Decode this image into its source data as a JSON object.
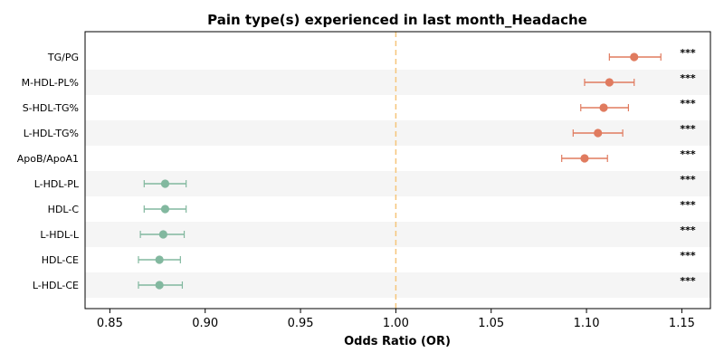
{
  "chart_data": {
    "type": "forest",
    "title": "Pain type(s) experienced in last month_Headache",
    "xlabel": "Odds Ratio (OR)",
    "xlim": [
      0.837,
      1.165
    ],
    "xticks": [
      "0.85",
      "0.90",
      "0.95",
      "1.00",
      "1.05",
      "1.10",
      "1.15"
    ],
    "xtick_values": [
      0.85,
      0.9,
      0.95,
      1.0,
      1.05,
      1.1,
      1.15
    ],
    "reference_line": 1.0,
    "reference_color": "#f5c57a",
    "band_color": "#f5f5f5",
    "colors": {
      "positive": "#e07b5f",
      "negative": "#82b89f"
    },
    "rows": [
      {
        "label": "TG/PG",
        "or": 1.125,
        "low": 1.112,
        "high": 1.139,
        "sig": "***",
        "direction": "positive"
      },
      {
        "label": "M-HDL-PL%",
        "or": 1.112,
        "low": 1.099,
        "high": 1.125,
        "sig": "***",
        "direction": "positive"
      },
      {
        "label": "S-HDL-TG%",
        "or": 1.109,
        "low": 1.097,
        "high": 1.122,
        "sig": "***",
        "direction": "positive"
      },
      {
        "label": "L-HDL-TG%",
        "or": 1.106,
        "low": 1.093,
        "high": 1.119,
        "sig": "***",
        "direction": "positive"
      },
      {
        "label": "ApoB/ApoA1",
        "or": 1.099,
        "low": 1.087,
        "high": 1.111,
        "sig": "***",
        "direction": "positive"
      },
      {
        "label": "L-HDL-PL",
        "or": 0.879,
        "low": 0.868,
        "high": 0.89,
        "sig": "***",
        "direction": "negative"
      },
      {
        "label": "HDL-C",
        "or": 0.879,
        "low": 0.868,
        "high": 0.89,
        "sig": "***",
        "direction": "negative"
      },
      {
        "label": "L-HDL-L",
        "or": 0.878,
        "low": 0.866,
        "high": 0.889,
        "sig": "***",
        "direction": "negative"
      },
      {
        "label": "HDL-CE",
        "or": 0.876,
        "low": 0.865,
        "high": 0.887,
        "sig": "***",
        "direction": "negative"
      },
      {
        "label": "L-HDL-CE",
        "or": 0.876,
        "low": 0.865,
        "high": 0.888,
        "sig": "***",
        "direction": "negative"
      }
    ]
  }
}
